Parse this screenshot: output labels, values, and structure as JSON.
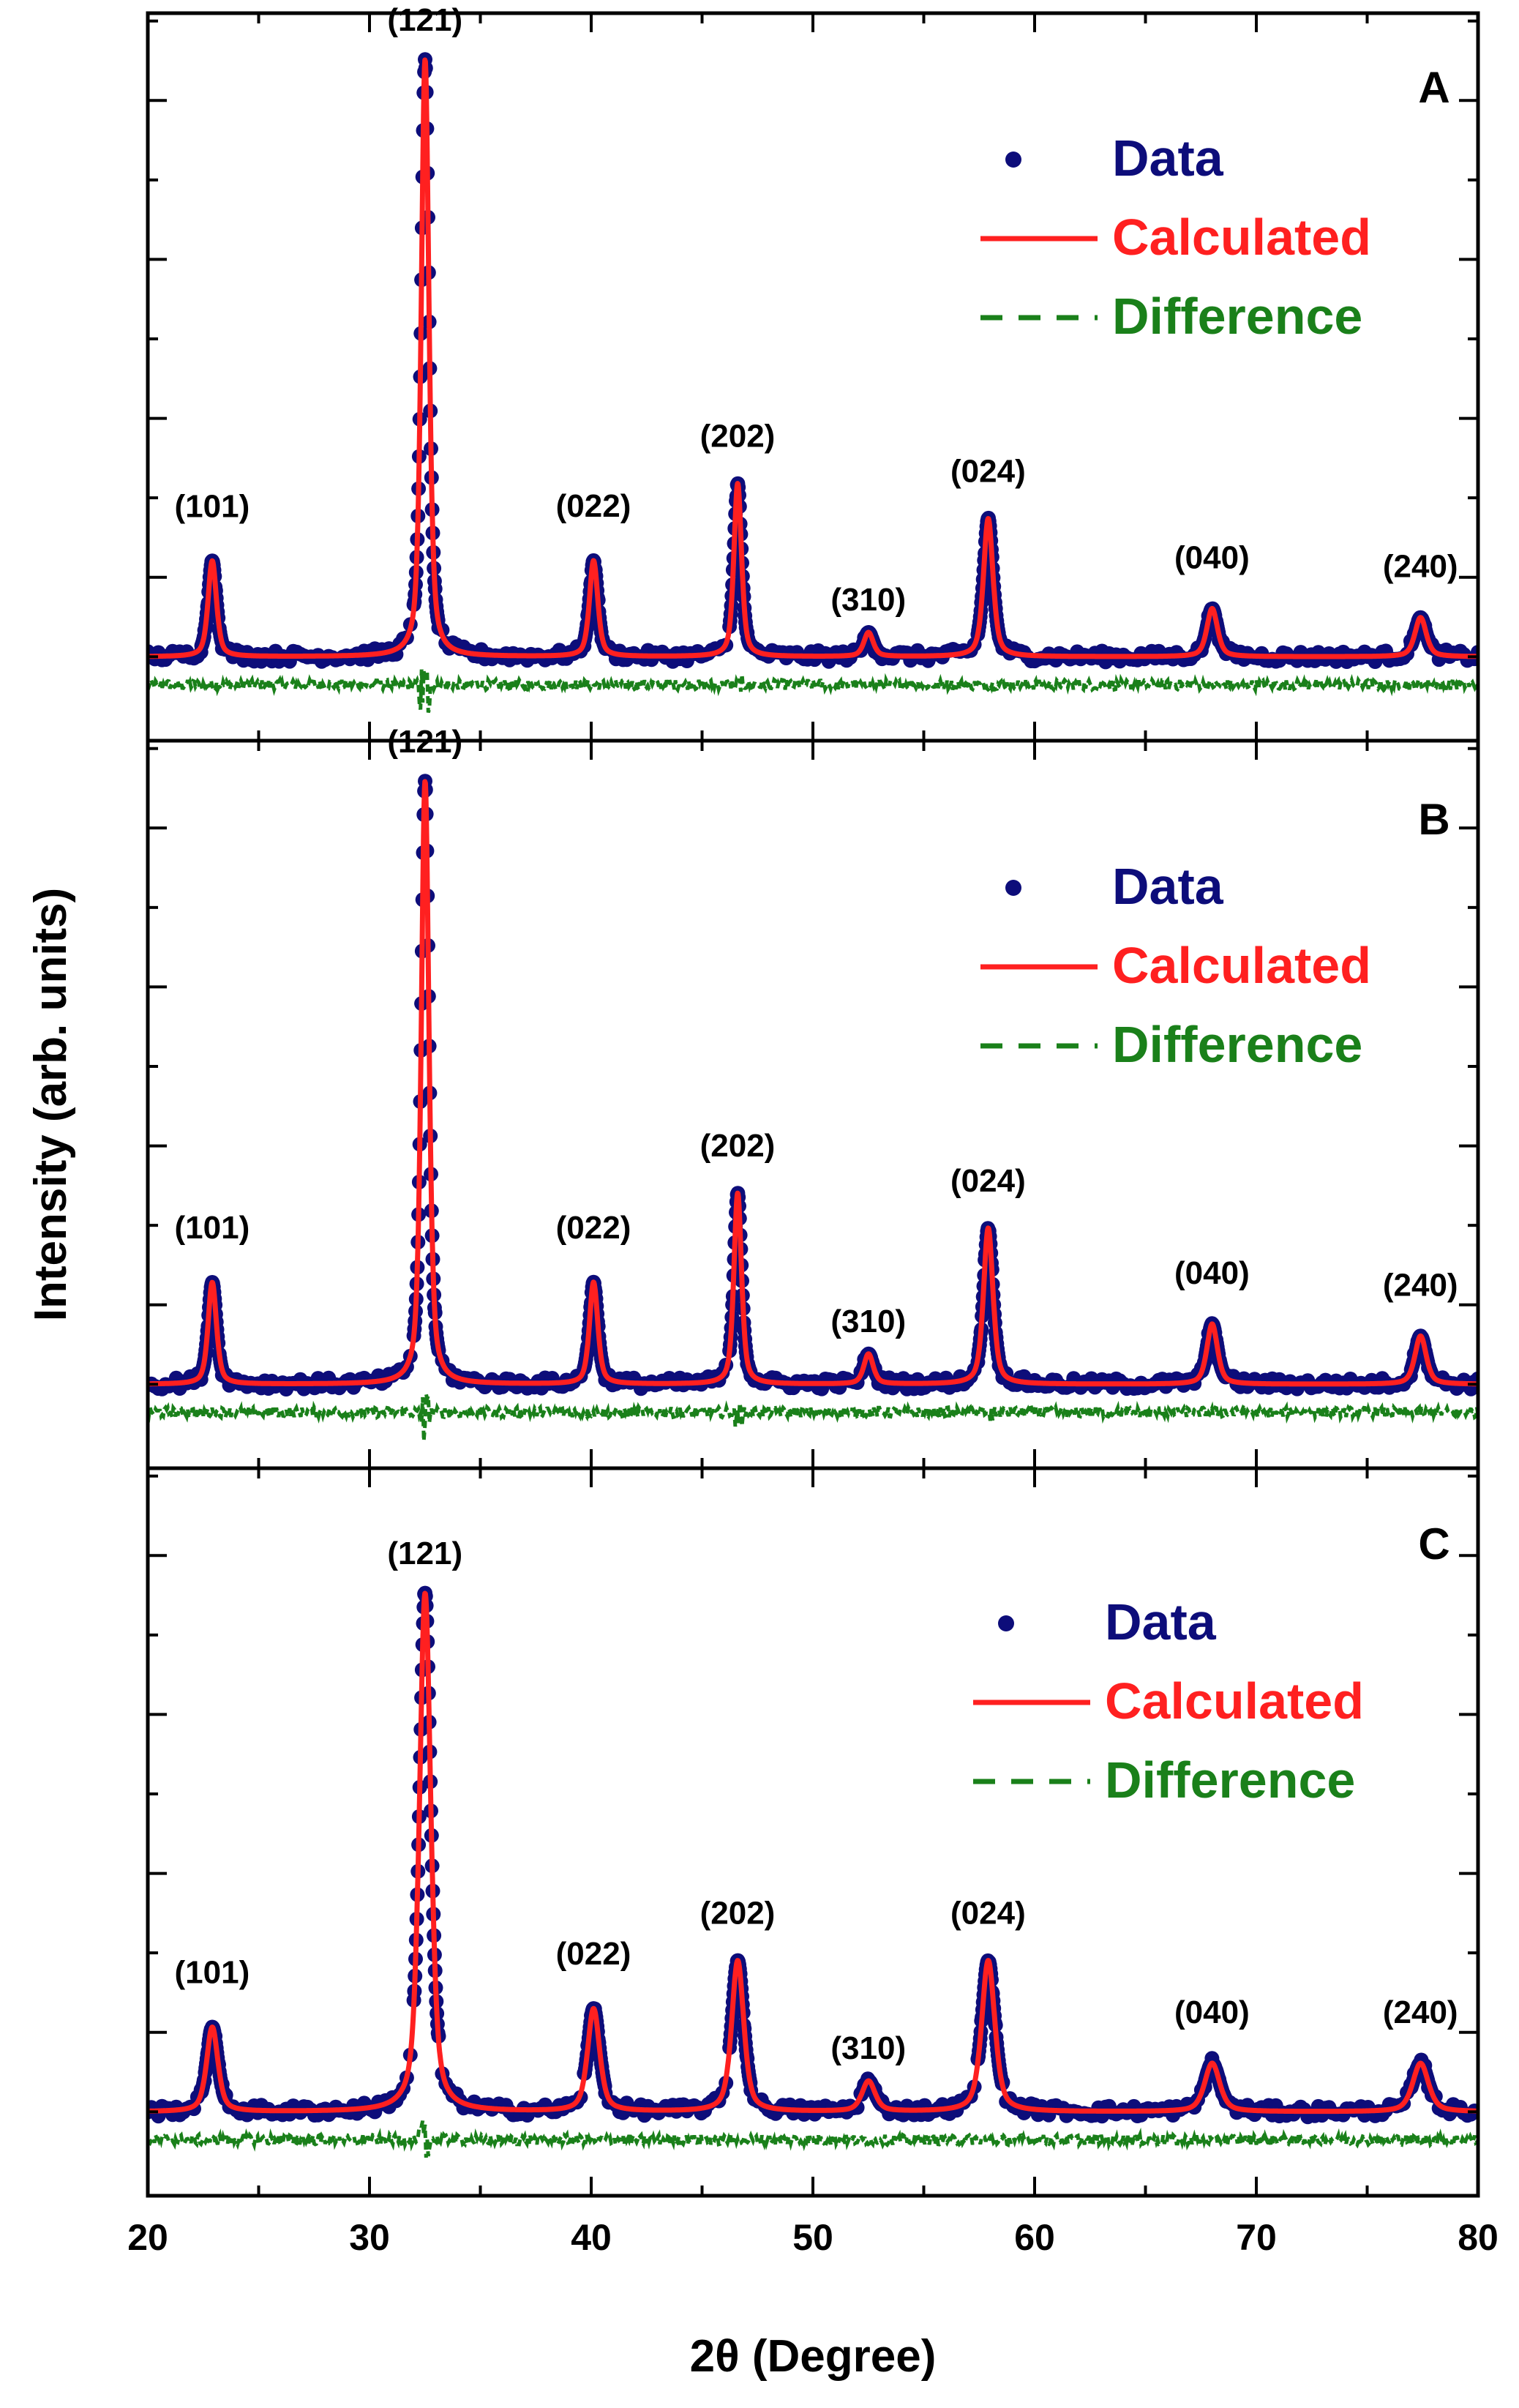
{
  "chart_data": {
    "type": "scatter",
    "xlabel": "2θ (Degree)",
    "ylabel": "Intensity (arb. units)",
    "xlim": [
      20,
      80
    ],
    "xticks": [
      20,
      30,
      40,
      50,
      60,
      70,
      80
    ],
    "ylim": [
      -0.15,
      1.15
    ],
    "ytick_values": [
      0.0,
      0.142,
      0.284,
      0.426,
      0.568,
      0.71,
      0.852,
      0.994,
      1.136
    ],
    "grid": false,
    "colors": {
      "data": "#0d0d7a",
      "calculated": "#ff2020",
      "difference": "#1a801a"
    },
    "legend": {
      "placement": "top-right",
      "entries": [
        {
          "label": "Data",
          "style": "marker"
        },
        {
          "label": "Calculated",
          "style": "solid-line"
        },
        {
          "label": "Difference",
          "style": "dashed-line"
        }
      ]
    },
    "panels": [
      {
        "panel": "A",
        "baseline": 0.0,
        "difference_offset": -0.05,
        "peaks": [
          {
            "hkl": "(101)",
            "x": 22.9,
            "height": 0.16,
            "width": 0.22
          },
          {
            "hkl": "(121)",
            "x": 32.5,
            "height": 1.0,
            "width": 0.2
          },
          {
            "hkl": "(022)",
            "x": 40.1,
            "height": 0.16,
            "width": 0.22
          },
          {
            "hkl": "(202)",
            "x": 46.6,
            "height": 0.29,
            "width": 0.2
          },
          {
            "hkl": "(310)",
            "x": 52.5,
            "height": 0.04,
            "width": 0.25
          },
          {
            "hkl": "(024)",
            "x": 57.9,
            "height": 0.23,
            "width": 0.25
          },
          {
            "hkl": "(040)",
            "x": 68.0,
            "height": 0.08,
            "width": 0.28
          },
          {
            "hkl": "(240)",
            "x": 77.4,
            "height": 0.065,
            "width": 0.3
          }
        ]
      },
      {
        "panel": "B",
        "baseline": 0.0,
        "difference_offset": -0.05,
        "peaks": [
          {
            "hkl": "(101)",
            "x": 22.9,
            "height": 0.17,
            "width": 0.22
          },
          {
            "hkl": "(121)",
            "x": 32.5,
            "height": 1.01,
            "width": 0.2
          },
          {
            "hkl": "(022)",
            "x": 40.1,
            "height": 0.17,
            "width": 0.22
          },
          {
            "hkl": "(202)",
            "x": 46.6,
            "height": 0.32,
            "width": 0.2
          },
          {
            "hkl": "(310)",
            "x": 52.5,
            "height": 0.05,
            "width": 0.25
          },
          {
            "hkl": "(024)",
            "x": 57.9,
            "height": 0.26,
            "width": 0.25
          },
          {
            "hkl": "(040)",
            "x": 68.0,
            "height": 0.1,
            "width": 0.28
          },
          {
            "hkl": "(240)",
            "x": 77.4,
            "height": 0.08,
            "width": 0.3
          }
        ]
      },
      {
        "panel": "C",
        "baseline": 0.0,
        "difference_offset": -0.05,
        "peaks": [
          {
            "hkl": "(101)",
            "x": 22.9,
            "height": 0.14,
            "width": 0.3
          },
          {
            "hkl": "(121)",
            "x": 32.5,
            "height": 0.86,
            "width": 0.3
          },
          {
            "hkl": "(022)",
            "x": 40.1,
            "height": 0.17,
            "width": 0.32
          },
          {
            "hkl": "(202)",
            "x": 46.6,
            "height": 0.25,
            "width": 0.32
          },
          {
            "hkl": "(310)",
            "x": 52.5,
            "height": 0.05,
            "width": 0.35
          },
          {
            "hkl": "(024)",
            "x": 57.9,
            "height": 0.25,
            "width": 0.35
          },
          {
            "hkl": "(040)",
            "x": 68.0,
            "height": 0.08,
            "width": 0.4
          },
          {
            "hkl": "(240)",
            "x": 77.4,
            "height": 0.08,
            "width": 0.42
          }
        ]
      }
    ]
  }
}
